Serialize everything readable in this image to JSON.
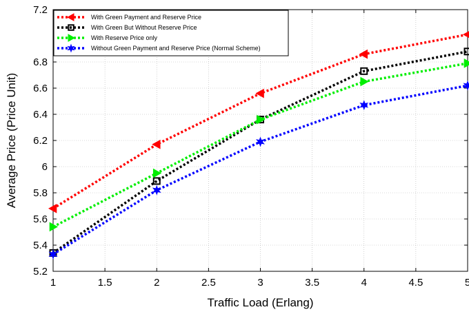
{
  "chart_data": {
    "type": "line",
    "xlabel": "Traffic Load (Erlang)",
    "ylabel": "Average Price (Price Unit)",
    "xlim": [
      1,
      5
    ],
    "ylim": [
      5.2,
      7.2
    ],
    "x_ticks": [
      "1",
      "1.5",
      "2",
      "2.5",
      "3",
      "3.5",
      "4",
      "4.5",
      "5"
    ],
    "y_ticks": [
      "5.2",
      "5.4",
      "5.6",
      "5.8",
      "6",
      "6.2",
      "6.4",
      "6.6",
      "6.8",
      "7.2"
    ],
    "grid": true,
    "legend_position": "top-left",
    "x": [
      1,
      2,
      3,
      4,
      5
    ],
    "series": [
      {
        "name": "With Green Payment and Reserve Price",
        "values": [
          5.68,
          6.17,
          6.56,
          6.86,
          7.01
        ],
        "color": "#ff0000",
        "marker": "triangle-left"
      },
      {
        "name": "With Green But Without Reserve Price",
        "values": [
          5.34,
          5.89,
          6.36,
          6.73,
          6.88
        ],
        "color": "#000000",
        "marker": "square"
      },
      {
        "name": "With Reserve Price only",
        "values": [
          5.54,
          5.95,
          6.36,
          6.65,
          6.79
        ],
        "color": "#00ee00",
        "marker": "triangle-right"
      },
      {
        "name": "Without Green Payment and Reserve Price (Normal Scheme)",
        "values": [
          5.33,
          5.82,
          6.19,
          6.47,
          6.62
        ],
        "color": "#0000ff",
        "marker": "star"
      }
    ]
  }
}
